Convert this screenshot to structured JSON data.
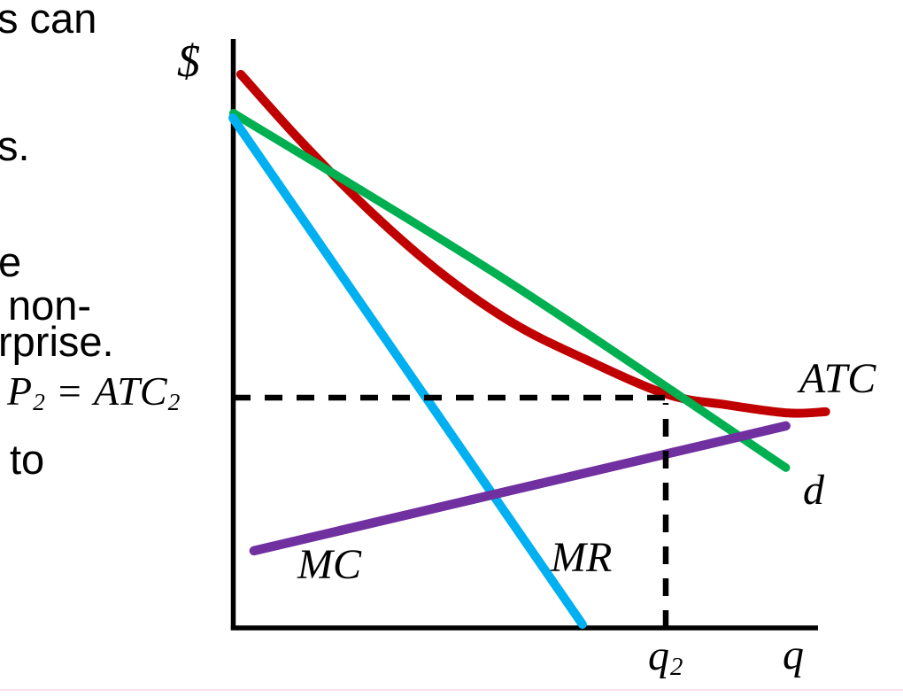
{
  "left_text_fragments": [
    {
      "text": "s can"
    },
    {
      "text": "s."
    },
    {
      "text": "e"
    },
    {
      "text": "non-"
    },
    {
      "text": "rprise."
    },
    {
      "text": "to"
    }
  ],
  "price_label": {
    "base1": "P",
    "sub1": "2",
    "equals": "=",
    "base2": "ATC",
    "sub2": "2"
  },
  "quantity_label": {
    "base": "q",
    "sub": "2"
  },
  "axis_labels": {
    "y_axis": "$",
    "x_axis": "q"
  },
  "curve_labels": {
    "atc": "ATC",
    "demand": "d",
    "marginal_revenue": "MR",
    "marginal_cost": "MC"
  },
  "colors": {
    "atc": "#C00000",
    "demand": "#00B050",
    "marginal_revenue": "#00B0F0",
    "marginal_cost": "#7030A0",
    "axis": "#000000",
    "dashed_line": "#000000",
    "text": "#000000",
    "bottom_artifact_pink": "#F0C6DD"
  },
  "chart_data": {
    "type": "line",
    "title": "",
    "xlabel": "q",
    "ylabel": "$",
    "xlim": [
      0,
      100
    ],
    "ylim": [
      0,
      100
    ],
    "grid": false,
    "legend_position": "labels-on-curves",
    "note": "Qualitative monopolistic-competition long-run equilibrium diagram; axes unlabeled numerically, coordinates in percent of visible axis ranges",
    "series": [
      {
        "name": "ATC",
        "color": "#C00000",
        "width": 10,
        "smooth": true,
        "points": [
          [
            1.3,
            94.0
          ],
          [
            11.3,
            82.6
          ],
          [
            23.0,
            70.5
          ],
          [
            34.8,
            60.0
          ],
          [
            46.5,
            51.7
          ],
          [
            58.2,
            45.7
          ],
          [
            71.8,
            39.7
          ],
          [
            81.7,
            37.9
          ],
          [
            91.9,
            36.5
          ],
          [
            98.2,
            36.7
          ]
        ]
      },
      {
        "name": "d",
        "color": "#00B050",
        "width": 9.5,
        "smooth": true,
        "points": [
          [
            0.1,
            87.4
          ],
          [
            44.7,
            59.4
          ],
          [
            91.6,
            27.2
          ]
        ]
      },
      {
        "name": "MR",
        "color": "#00B0F0",
        "width": 10,
        "smooth": false,
        "points": [
          [
            0.0,
            86.6
          ],
          [
            57.9,
            0.6
          ]
        ]
      },
      {
        "name": "MC",
        "color": "#7030A0",
        "width": 10.5,
        "smooth": false,
        "points": [
          [
            3.5,
            13.1
          ],
          [
            91.6,
            34.3
          ]
        ]
      }
    ],
    "annotations": {
      "equilibrium": {
        "q": 71.7,
        "p": 39.1,
        "q_label": "q2",
        "p_label": "P2 = ATC2"
      },
      "dashed_horizontal": {
        "y": 39.1,
        "x_from": 0,
        "x_to": 71.7
      },
      "dashed_vertical": {
        "x": 71.7,
        "y_from": 0,
        "y_to": 38.2
      }
    }
  }
}
